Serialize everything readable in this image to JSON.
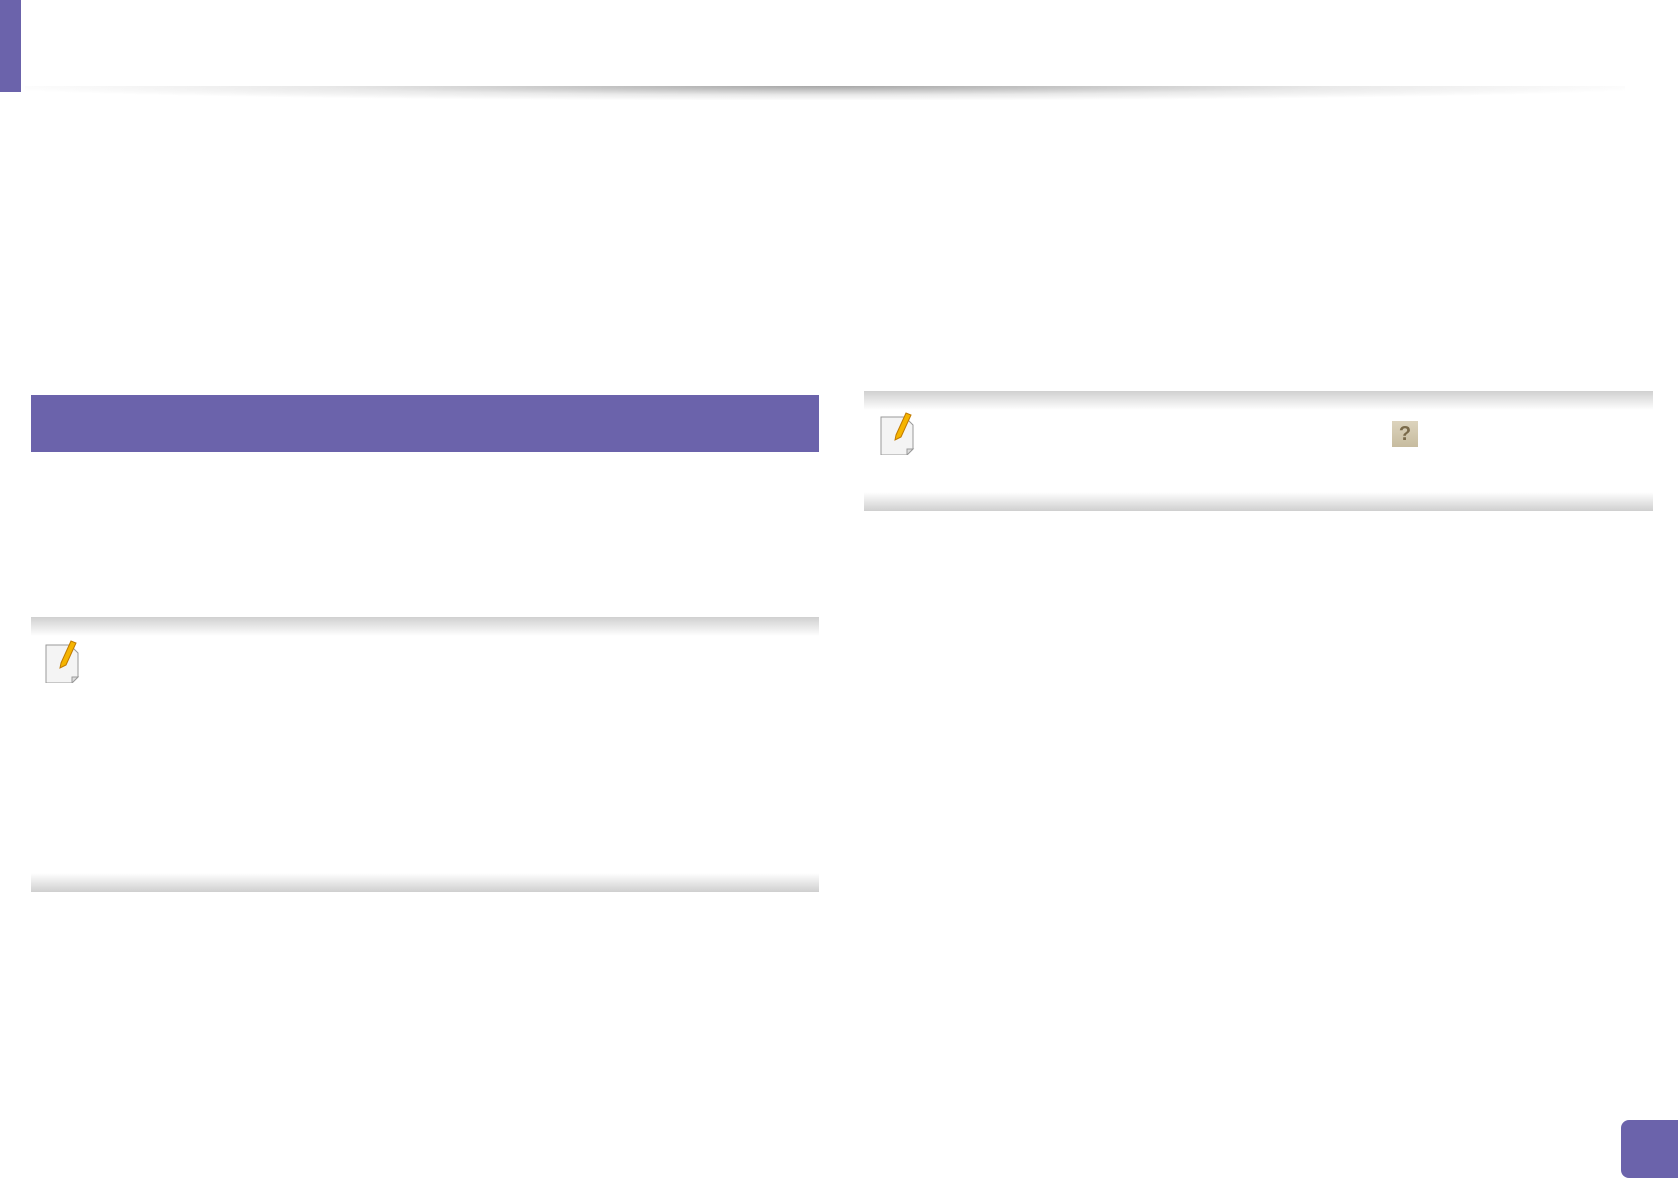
{
  "colors": {
    "accent": "#6b63ab",
    "note_border": "#cfcfcf"
  },
  "icons": {
    "note": "note-pencil-icon",
    "help": "help-icon"
  },
  "help_icon": {
    "glyph": "?"
  }
}
